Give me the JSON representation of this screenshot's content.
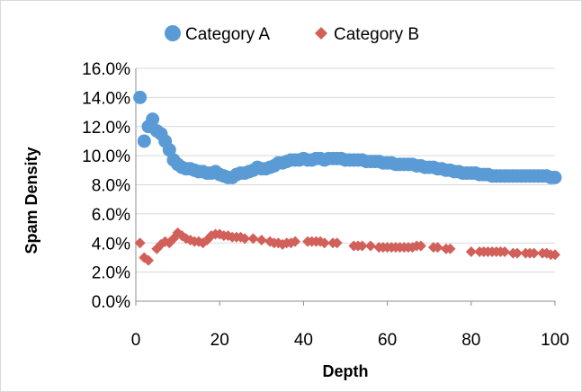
{
  "chart_data": {
    "type": "scatter",
    "xlabel": "Depth",
    "ylabel": "Spam Density",
    "xlim": [
      0,
      100
    ],
    "ylim": [
      0.0,
      0.16
    ],
    "x_ticks": [
      "0",
      "20",
      "40",
      "60",
      "80",
      "100"
    ],
    "y_ticks": [
      "0.0%",
      "2.0%",
      "4.0%",
      "6.0%",
      "8.0%",
      "10.0%",
      "12.0%",
      "14.0%",
      "16.0%"
    ],
    "grid": "horizontal",
    "legend_position": "top",
    "series": [
      {
        "name": "Category A",
        "color": "#5b9bd5",
        "marker": "circle",
        "points": [
          [
            1,
            0.14
          ],
          [
            2,
            0.11
          ],
          [
            3,
            0.12
          ],
          [
            4,
            0.125
          ],
          [
            5,
            0.117
          ],
          [
            6,
            0.115
          ],
          [
            7,
            0.11
          ],
          [
            8,
            0.104
          ],
          [
            9,
            0.097
          ],
          [
            10,
            0.094
          ],
          [
            11,
            0.092
          ],
          [
            12,
            0.091
          ],
          [
            13,
            0.091
          ],
          [
            14,
            0.09
          ],
          [
            15,
            0.089
          ],
          [
            16,
            0.089
          ],
          [
            17,
            0.088
          ],
          [
            18,
            0.088
          ],
          [
            19,
            0.089
          ],
          [
            20,
            0.087
          ],
          [
            21,
            0.086
          ],
          [
            22,
            0.085
          ],
          [
            23,
            0.085
          ],
          [
            24,
            0.087
          ],
          [
            25,
            0.088
          ],
          [
            26,
            0.088
          ],
          [
            27,
            0.089
          ],
          [
            28,
            0.09
          ],
          [
            29,
            0.092
          ],
          [
            30,
            0.091
          ],
          [
            31,
            0.091
          ],
          [
            32,
            0.092
          ],
          [
            33,
            0.093
          ],
          [
            34,
            0.095
          ],
          [
            35,
            0.095
          ],
          [
            36,
            0.096
          ],
          [
            37,
            0.097
          ],
          [
            38,
            0.097
          ],
          [
            39,
            0.097
          ],
          [
            40,
            0.098
          ],
          [
            41,
            0.097
          ],
          [
            42,
            0.097
          ],
          [
            43,
            0.098
          ],
          [
            44,
            0.098
          ],
          [
            45,
            0.097
          ],
          [
            46,
            0.098
          ],
          [
            47,
            0.098
          ],
          [
            48,
            0.098
          ],
          [
            49,
            0.098
          ],
          [
            50,
            0.097
          ],
          [
            51,
            0.097
          ],
          [
            52,
            0.097
          ],
          [
            53,
            0.097
          ],
          [
            54,
            0.097
          ],
          [
            55,
            0.096
          ],
          [
            56,
            0.096
          ],
          [
            57,
            0.096
          ],
          [
            58,
            0.096
          ],
          [
            59,
            0.095
          ],
          [
            60,
            0.095
          ],
          [
            61,
            0.095
          ],
          [
            62,
            0.094
          ],
          [
            63,
            0.094
          ],
          [
            64,
            0.094
          ],
          [
            65,
            0.094
          ],
          [
            66,
            0.094
          ],
          [
            67,
            0.093
          ],
          [
            68,
            0.093
          ],
          [
            69,
            0.092
          ],
          [
            70,
            0.092
          ],
          [
            71,
            0.092
          ],
          [
            72,
            0.091
          ],
          [
            73,
            0.091
          ],
          [
            74,
            0.09
          ],
          [
            75,
            0.09
          ],
          [
            76,
            0.089
          ],
          [
            77,
            0.089
          ],
          [
            78,
            0.088
          ],
          [
            79,
            0.088
          ],
          [
            80,
            0.088
          ],
          [
            81,
            0.088
          ],
          [
            82,
            0.087
          ],
          [
            83,
            0.087
          ],
          [
            84,
            0.087
          ],
          [
            85,
            0.086
          ],
          [
            86,
            0.086
          ],
          [
            87,
            0.086
          ],
          [
            88,
            0.086
          ],
          [
            89,
            0.086
          ],
          [
            90,
            0.086
          ],
          [
            91,
            0.086
          ],
          [
            92,
            0.086
          ],
          [
            93,
            0.086
          ],
          [
            94,
            0.086
          ],
          [
            95,
            0.086
          ],
          [
            96,
            0.086
          ],
          [
            97,
            0.086
          ],
          [
            98,
            0.086
          ],
          [
            99,
            0.085
          ],
          [
            100,
            0.085
          ]
        ]
      },
      {
        "name": "Category B",
        "color": "#d2605a",
        "marker": "diamond",
        "points": [
          [
            1,
            0.04
          ],
          [
            2,
            0.03
          ],
          [
            3,
            0.028
          ],
          [
            5,
            0.036
          ],
          [
            6,
            0.039
          ],
          [
            7,
            0.041
          ],
          [
            8,
            0.04
          ],
          [
            9,
            0.043
          ],
          [
            10,
            0.047
          ],
          [
            11,
            0.045
          ],
          [
            12,
            0.043
          ],
          [
            13,
            0.042
          ],
          [
            14,
            0.041
          ],
          [
            15,
            0.041
          ],
          [
            16,
            0.04
          ],
          [
            17,
            0.042
          ],
          [
            18,
            0.045
          ],
          [
            19,
            0.046
          ],
          [
            20,
            0.046
          ],
          [
            21,
            0.045
          ],
          [
            22,
            0.045
          ],
          [
            23,
            0.044
          ],
          [
            24,
            0.044
          ],
          [
            25,
            0.044
          ],
          [
            26,
            0.043
          ],
          [
            28,
            0.043
          ],
          [
            30,
            0.042
          ],
          [
            32,
            0.041
          ],
          [
            33,
            0.04
          ],
          [
            34,
            0.04
          ],
          [
            35,
            0.039
          ],
          [
            36,
            0.04
          ],
          [
            37,
            0.04
          ],
          [
            38,
            0.041
          ],
          [
            41,
            0.041
          ],
          [
            42,
            0.041
          ],
          [
            43,
            0.041
          ],
          [
            44,
            0.041
          ],
          [
            45,
            0.04
          ],
          [
            47,
            0.04
          ],
          [
            48,
            0.04
          ],
          [
            52,
            0.038
          ],
          [
            53,
            0.038
          ],
          [
            54,
            0.038
          ],
          [
            56,
            0.038
          ],
          [
            58,
            0.037
          ],
          [
            59,
            0.037
          ],
          [
            60,
            0.037
          ],
          [
            61,
            0.037
          ],
          [
            62,
            0.037
          ],
          [
            63,
            0.037
          ],
          [
            64,
            0.037
          ],
          [
            65,
            0.037
          ],
          [
            66,
            0.037
          ],
          [
            67,
            0.038
          ],
          [
            68,
            0.038
          ],
          [
            71,
            0.037
          ],
          [
            72,
            0.037
          ],
          [
            74,
            0.036
          ],
          [
            75,
            0.036
          ],
          [
            80,
            0.034
          ],
          [
            82,
            0.034
          ],
          [
            83,
            0.034
          ],
          [
            84,
            0.034
          ],
          [
            85,
            0.034
          ],
          [
            86,
            0.034
          ],
          [
            87,
            0.034
          ],
          [
            88,
            0.034
          ],
          [
            90,
            0.033
          ],
          [
            91,
            0.033
          ],
          [
            93,
            0.033
          ],
          [
            94,
            0.033
          ],
          [
            95,
            0.033
          ],
          [
            97,
            0.033
          ],
          [
            98,
            0.033
          ],
          [
            99,
            0.032
          ],
          [
            100,
            0.032
          ]
        ]
      }
    ]
  }
}
